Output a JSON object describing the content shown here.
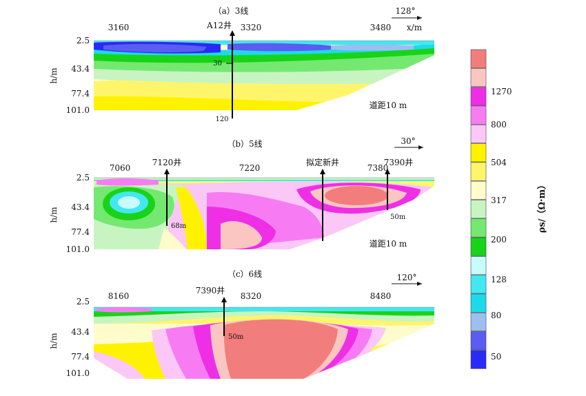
{
  "y_unit": "h/m",
  "y_ticks": [
    "2.5",
    "43.4",
    "77.4",
    "101.0"
  ],
  "spacing": "道距10 m",
  "panels": [
    {
      "title": "（a）3线",
      "angle": "128°",
      "x_ticks": [
        "3160",
        "3320",
        "3480"
      ],
      "x_unit": "x/m",
      "wells": [
        {
          "name": "A12井",
          "depth_top": "30",
          "depth_bottom": "120"
        }
      ]
    },
    {
      "title": "（b）5线",
      "angle": "30°",
      "x_ticks": [
        "7060",
        "7220",
        "7380"
      ],
      "wells": [
        {
          "name": "7120井",
          "depth": "68m"
        },
        {
          "name": "拟定新井"
        },
        {
          "name": "7390井",
          "depth": "50m"
        }
      ]
    },
    {
      "title": "（c）6线",
      "angle": "120°",
      "x_ticks": [
        "8160",
        "8320",
        "8480"
      ],
      "wells": [
        {
          "name": "7390井",
          "depth": "50m"
        }
      ]
    }
  ],
  "legend": {
    "title": "ρs/（Ω·m）",
    "labels": [
      "1270",
      "800",
      "504",
      "317",
      "200",
      "128",
      "80",
      "50"
    ],
    "colors": [
      "#f27d7d",
      "#fbc6c2",
      "#ee2fe6",
      "#f77cf3",
      "#fbc7f7",
      "#fff200",
      "#fff56b",
      "#fffccc",
      "#c8f4c2",
      "#74e871",
      "#18d318",
      "#c7fbfd",
      "#43e7f1",
      "#1ddaea",
      "#9cbff0",
      "#5b5cf2",
      "#2a2af6"
    ]
  }
}
